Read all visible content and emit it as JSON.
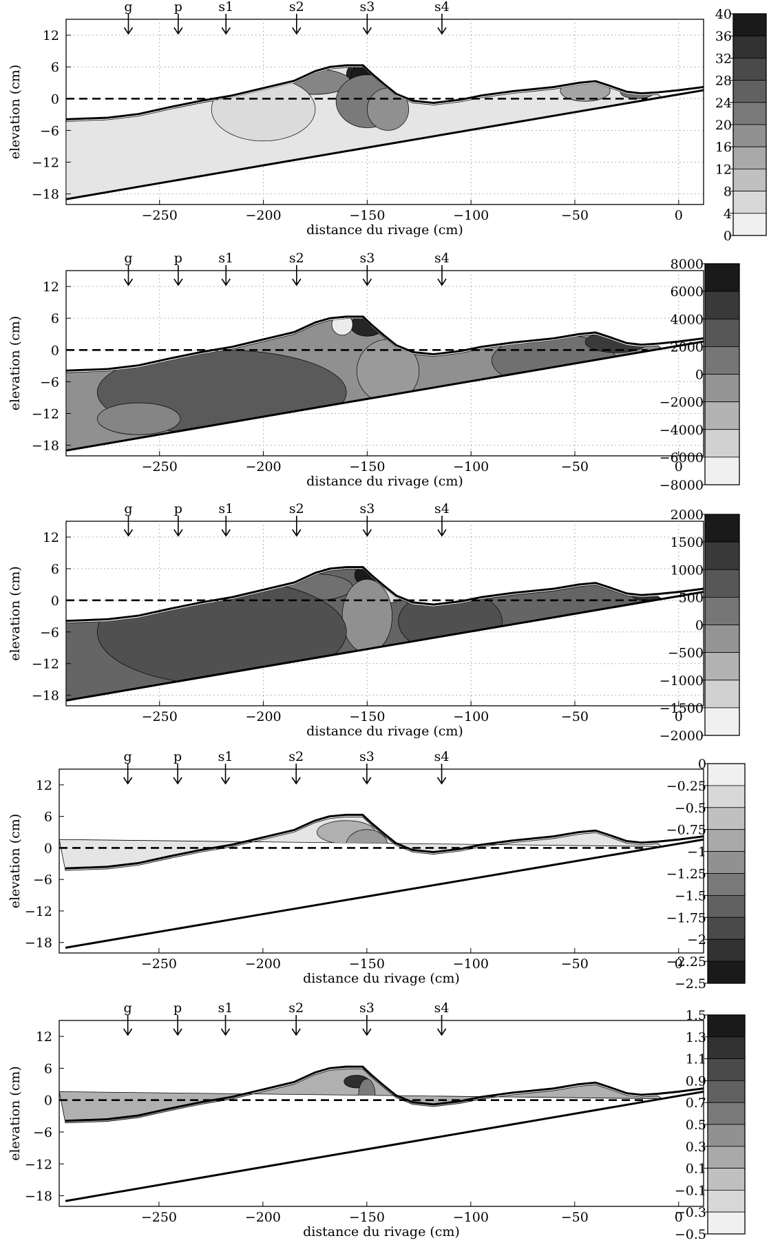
{
  "chart_data": [
    {
      "type": "contour",
      "xlabel": "distance du rivage (cm)",
      "ylabel": "elevation (cm)",
      "xlim": [
        -295,
        12
      ],
      "ylim": [
        -20,
        15
      ],
      "xticks": [
        -250,
        -200,
        -150,
        -100,
        -50,
        0
      ],
      "yticks": [
        12,
        6,
        0,
        -6,
        -12,
        -18
      ],
      "xtick_labels": [
        "−250",
        "−200",
        "−150",
        "−100",
        "−50",
        "0"
      ],
      "ytick_labels": [
        "12",
        "6",
        "0",
        "−6",
        "−12",
        "−18"
      ],
      "grid": true,
      "colorbar_levels": [
        0,
        4,
        8,
        12,
        16,
        20,
        24,
        28,
        32,
        36,
        40
      ],
      "colorbar_labels": [
        "40",
        "36",
        "32",
        "28",
        "24",
        "20",
        "16",
        "12",
        "8",
        "4",
        "0"
      ],
      "colorbar_order": "ascending"
    },
    {
      "type": "contour",
      "xlabel": "distance du rivage (cm)",
      "ylabel": "elevation (cm)",
      "xlim": [
        -295,
        12
      ],
      "ylim": [
        -20,
        15
      ],
      "xticks": [
        -250,
        -200,
        -150,
        -100,
        -50,
        0
      ],
      "yticks": [
        12,
        6,
        0,
        -6,
        -12,
        -18
      ],
      "xtick_labels": [
        "−250",
        "−200",
        "−150",
        "−100",
        "−50",
        "0"
      ],
      "ytick_labels": [
        "12",
        "6",
        "0",
        "−6",
        "−12",
        "−18"
      ],
      "grid": true,
      "colorbar_levels": [
        -8000,
        -6000,
        -4000,
        -2000,
        0,
        2000,
        4000,
        6000,
        8000
      ],
      "colorbar_labels": [
        "8000",
        "6000",
        "4000",
        "2000",
        "0",
        "−2000",
        "−4000",
        "−6000",
        "−8000"
      ],
      "colorbar_order": "ascending"
    },
    {
      "type": "contour",
      "xlabel": "distance du rivage (cm)",
      "ylabel": "elevation (cm)",
      "xlim": [
        -295,
        12
      ],
      "ylim": [
        -20,
        15
      ],
      "xticks": [
        -250,
        -200,
        -150,
        -100,
        -50,
        0
      ],
      "yticks": [
        12,
        6,
        0,
        -6,
        -12,
        -18
      ],
      "xtick_labels": [
        "−250",
        "−200",
        "−150",
        "−100",
        "−50",
        "0"
      ],
      "ytick_labels": [
        "12",
        "6",
        "0",
        "−6",
        "−12",
        "−18"
      ],
      "grid": true,
      "colorbar_levels": [
        -2000,
        -1500,
        -1000,
        -500,
        0,
        500,
        1000,
        1500,
        2000
      ],
      "colorbar_labels": [
        "2000",
        "1500",
        "1000",
        "500",
        "0",
        "−500",
        "−1000",
        "−1500",
        "−2000"
      ],
      "colorbar_order": "ascending"
    },
    {
      "type": "contour",
      "xlabel": "distance du rivage (cm)",
      "ylabel": "elevation (cm)",
      "xlim": [
        -298,
        12
      ],
      "ylim": [
        -20,
        15
      ],
      "xticks": [
        -250,
        -200,
        -150,
        -100,
        -50,
        0
      ],
      "yticks": [
        12,
        6,
        0,
        -6,
        -12,
        -18
      ],
      "xtick_labels": [
        "−250",
        "−200",
        "−150",
        "−100",
        "−50",
        "0"
      ],
      "ytick_labels": [
        "12",
        "6",
        "0",
        "−6",
        "−12",
        "−18"
      ],
      "grid": false,
      "colorbar_levels": [
        -2.5,
        -2.25,
        -2,
        -1.75,
        -1.5,
        -1.25,
        -1,
        -0.75,
        -0.5,
        -0.25,
        0
      ],
      "colorbar_labels": [
        "0",
        "−0.25",
        "−0.5",
        "−0.75",
        "−1",
        "−1.25",
        "−1.5",
        "−1.75",
        "−2",
        "−2.25",
        "−2.5"
      ],
      "colorbar_order": "descending"
    },
    {
      "type": "contour",
      "xlabel": "distance du rivage (cm)",
      "ylabel": "elevation (cm)",
      "xlim": [
        -298,
        12
      ],
      "ylim": [
        -20,
        15
      ],
      "xticks": [
        -250,
        -200,
        -150,
        -100,
        -50,
        0
      ],
      "yticks": [
        12,
        6,
        0,
        -6,
        -12,
        -18
      ],
      "xtick_labels": [
        "−250",
        "−200",
        "−150",
        "−100",
        "−50",
        "0"
      ],
      "ytick_labels": [
        "12",
        "6",
        "0",
        "−6",
        "−12",
        "−18"
      ],
      "grid": false,
      "colorbar_levels": [
        -0.5,
        -0.3,
        -0.1,
        0.1,
        0.3,
        0.5,
        0.7,
        0.9,
        1.1,
        1.3,
        1.5
      ],
      "colorbar_labels": [
        "1.5",
        "1.3",
        "1.1",
        "0.9",
        "0.7",
        "0.5",
        "0.3",
        "0.1",
        "−0.1",
        "−0.3",
        "−0.5"
      ],
      "colorbar_order": "ascending"
    }
  ],
  "sensors": [
    {
      "label": "g",
      "x": -265
    },
    {
      "label": "p",
      "x": -241
    },
    {
      "label": "s1",
      "x": -218
    },
    {
      "label": "s2",
      "x": -184
    },
    {
      "label": "s3",
      "x": -150
    },
    {
      "label": "s4",
      "x": -114
    }
  ],
  "profile": {
    "water_surface": [
      [
        -295,
        -3.9
      ],
      [
        -275,
        -3.6
      ],
      [
        -260,
        -2.9
      ],
      [
        -245,
        -1.6
      ],
      [
        -230,
        -0.4
      ],
      [
        -215,
        0.6
      ],
      [
        -200,
        2.0
      ],
      [
        -185,
        3.4
      ],
      [
        -175,
        5.2
      ],
      [
        -168,
        6.0
      ],
      [
        -160,
        6.3
      ],
      [
        -152,
        6.3
      ],
      [
        -148,
        4.8
      ],
      [
        -142,
        2.8
      ],
      [
        -136,
        0.9
      ],
      [
        -128,
        -0.4
      ],
      [
        -118,
        -0.8
      ],
      [
        -105,
        -0.2
      ],
      [
        -95,
        0.6
      ],
      [
        -80,
        1.4
      ],
      [
        -60,
        2.2
      ],
      [
        -48,
        3.0
      ],
      [
        -40,
        3.3
      ],
      [
        -33,
        2.4
      ],
      [
        -25,
        1.3
      ],
      [
        -18,
        1.0
      ],
      [
        -10,
        1.2
      ],
      [
        0,
        1.6
      ],
      [
        12,
        2.2
      ]
    ],
    "bottom": [
      [
        -295,
        -19.0
      ],
      [
        -200,
        -12.6
      ],
      [
        -100,
        -5.9
      ],
      [
        0,
        0.8
      ],
      [
        12,
        1.6
      ]
    ],
    "still_water_level": 0
  },
  "colors": {
    "ink": "#000000",
    "grid": "#999999",
    "lightest": "#f0f0f0",
    "darkest": "#1c1c1c"
  }
}
